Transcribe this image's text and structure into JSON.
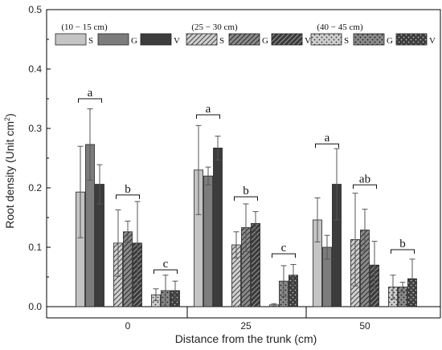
{
  "chart_data": {
    "type": "bar",
    "categories": [
      "0",
      "25",
      "50"
    ],
    "xlabel": "Distance from the trunk (cm)",
    "ylabel": "Root density (Unit cm",
    "ylabel_sup": "2",
    "ylabel_end": ")",
    "ylim": [
      0,
      0.5
    ],
    "yticks": [
      "0.0",
      "0.1",
      "0.2",
      "0.3",
      "0.4",
      "0.5"
    ],
    "grid": false,
    "legend_position": "top",
    "depth_groups": [
      {
        "label": "(10 − 15 cm)",
        "pattern": "solid"
      },
      {
        "label": "(25 − 30 cm)",
        "pattern": "hatch"
      },
      {
        "label": "(40 − 45 cm)",
        "pattern": "dots"
      }
    ],
    "sub_series": [
      "S",
      "G",
      "V"
    ],
    "colors": {
      "S": "#c4c4c4",
      "G": "#7c7c7c",
      "V": "#3c3c3c"
    },
    "series": [
      {
        "name": "S",
        "depth": 0,
        "values": [
          0.193,
          0.23,
          0.146
        ],
        "errors": [
          0.077,
          0.075,
          0.037
        ]
      },
      {
        "name": "G",
        "depth": 0,
        "values": [
          0.273,
          0.22,
          0.1
        ],
        "errors": [
          0.06,
          0.015,
          0.02
        ]
      },
      {
        "name": "V",
        "depth": 0,
        "values": [
          0.206,
          0.267,
          0.206
        ],
        "errors": [
          0.033,
          0.02,
          0.06
        ]
      },
      {
        "name": "S",
        "depth": 1,
        "values": [
          0.107,
          0.104,
          0.113
        ],
        "errors": [
          0.056,
          0.022,
          0.078
        ]
      },
      {
        "name": "G",
        "depth": 1,
        "values": [
          0.126,
          0.133,
          0.129
        ],
        "errors": [
          0.018,
          0.04,
          0.035
        ]
      },
      {
        "name": "V",
        "depth": 1,
        "values": [
          0.107,
          0.14,
          0.07
        ],
        "errors": [
          0.07,
          0.02,
          0.04
        ]
      },
      {
        "name": "S",
        "depth": 2,
        "values": [
          0.02,
          0.003,
          0.033
        ],
        "errors": [
          0.01,
          0.002,
          0.02
        ]
      },
      {
        "name": "G",
        "depth": 2,
        "values": [
          0.027,
          0.043,
          0.033
        ],
        "errors": [
          0.026,
          0.026,
          0.008
        ]
      },
      {
        "name": "V",
        "depth": 2,
        "values": [
          0.027,
          0.053,
          0.047
        ],
        "errors": [
          0.016,
          0.018,
          0.033
        ]
      }
    ],
    "significance": [
      [
        {
          "label": "a",
          "y": 0.35
        },
        {
          "label": "b",
          "y": 0.188
        },
        {
          "label": "c",
          "y": 0.062
        }
      ],
      [
        {
          "label": "a",
          "y": 0.323
        },
        {
          "label": "b",
          "y": 0.185
        },
        {
          "label": "c",
          "y": 0.089
        }
      ],
      [
        {
          "label": "a",
          "y": 0.274
        },
        {
          "label": "ab",
          "y": 0.205
        },
        {
          "label": "b",
          "y": 0.096
        }
      ]
    ]
  }
}
